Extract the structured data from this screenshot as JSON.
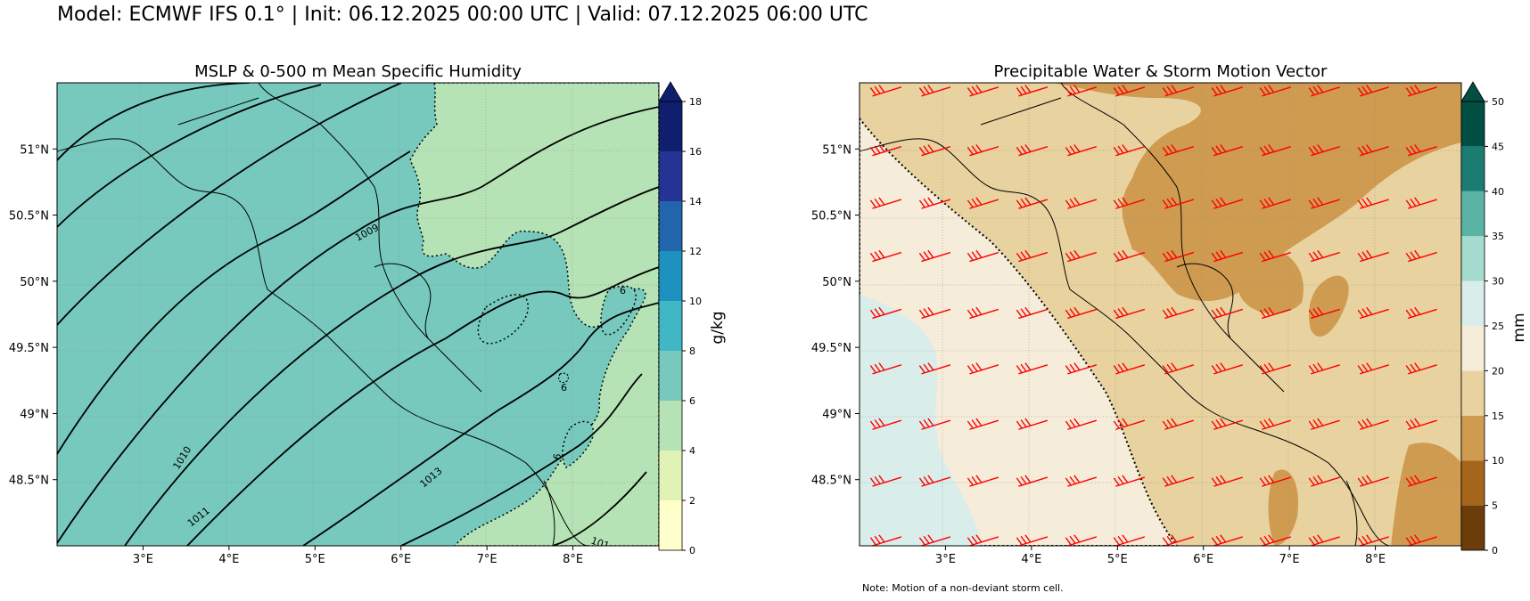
{
  "suptitle": "Model: ECMWF IFS 0.1° | Init: 06.12.2025 00:00 UTC | Valid: 07.12.2025 06:00 UTC",
  "note": "Note: Motion of a non-deviant storm cell.",
  "colors": {
    "humidity": [
      "#ffffcc",
      "#e1f3b4",
      "#b5e3b5",
      "#76c9bc",
      "#41b6c4",
      "#1d91c0",
      "#2166ac",
      "#253494",
      "#0f1f6e"
    ],
    "pwat": [
      "#6b3d0a",
      "#a5661b",
      "#cf9b50",
      "#e8d29f",
      "#f5ecda",
      "#d9eeeb",
      "#a5dace",
      "#5bb3a5",
      "#1b7c72",
      "#014e43"
    ],
    "barb": "#ff0000",
    "isobar": "#000000"
  },
  "chart_data": [
    {
      "type": "contour-map",
      "title": "MSLP & 0-500 m Mean Specific Humidity",
      "xlabel": "",
      "ylabel": "",
      "xticks": [
        "3°E",
        "4°E",
        "5°E",
        "6°E",
        "7°E",
        "8°E"
      ],
      "yticks": [
        "51°N",
        "50.5°N",
        "50°N",
        "49.5°N",
        "49°N",
        "48.5°N"
      ],
      "x_range": [
        2.0,
        9.0
      ],
      "y_range": [
        48.0,
        51.5
      ],
      "colorbar": {
        "label": "g/kg",
        "levels": [
          0,
          2,
          4,
          6,
          8,
          10,
          12,
          14,
          16,
          18
        ],
        "tick_labels": [
          "0",
          "2",
          "4",
          "6",
          "8",
          "10",
          "12",
          "14",
          "16",
          "18"
        ],
        "extend": "max"
      },
      "filled_levels_present": [
        "4-6 g/kg",
        "6-8 g/kg"
      ],
      "isobar_labels": [
        "1009",
        "1010",
        "1011",
        "1013",
        "101"
      ],
      "humidity_contour_labels": [
        "6",
        "6",
        "6"
      ]
    },
    {
      "type": "contour-map",
      "title": "Precipitable Water & Storm Motion Vector",
      "xlabel": "",
      "ylabel": "",
      "xticks": [
        "3°E",
        "4°E",
        "5°E",
        "6°E",
        "7°E",
        "8°E"
      ],
      "yticks": [
        "51°N",
        "50.5°N",
        "50°N",
        "49.5°N",
        "49°N",
        "48.5°N"
      ],
      "x_range": [
        2.0,
        9.0
      ],
      "y_range": [
        48.0,
        51.5
      ],
      "colorbar": {
        "label": "mm",
        "levels": [
          0,
          5,
          10,
          15,
          20,
          25,
          30,
          35,
          40,
          45,
          50
        ],
        "tick_labels": [
          "0",
          "5",
          "10",
          "15",
          "20",
          "25",
          "30",
          "35",
          "40",
          "45",
          "50"
        ],
        "extend": "max"
      },
      "filled_levels_present": [
        "10-15 mm",
        "15-20 mm",
        "20-25 mm",
        "25-30 mm"
      ],
      "storm_motion_barbs": {
        "rows_lat": [
          51.4,
          50.95,
          50.55,
          50.15,
          49.72,
          49.3,
          48.88,
          48.45,
          48.0
        ],
        "cols_lon": [
          2.15,
          2.72,
          3.28,
          3.85,
          4.42,
          4.98,
          5.55,
          6.12,
          6.68,
          7.25,
          7.82,
          8.38
        ],
        "direction": "west-southwest to east-northeast"
      }
    }
  ]
}
